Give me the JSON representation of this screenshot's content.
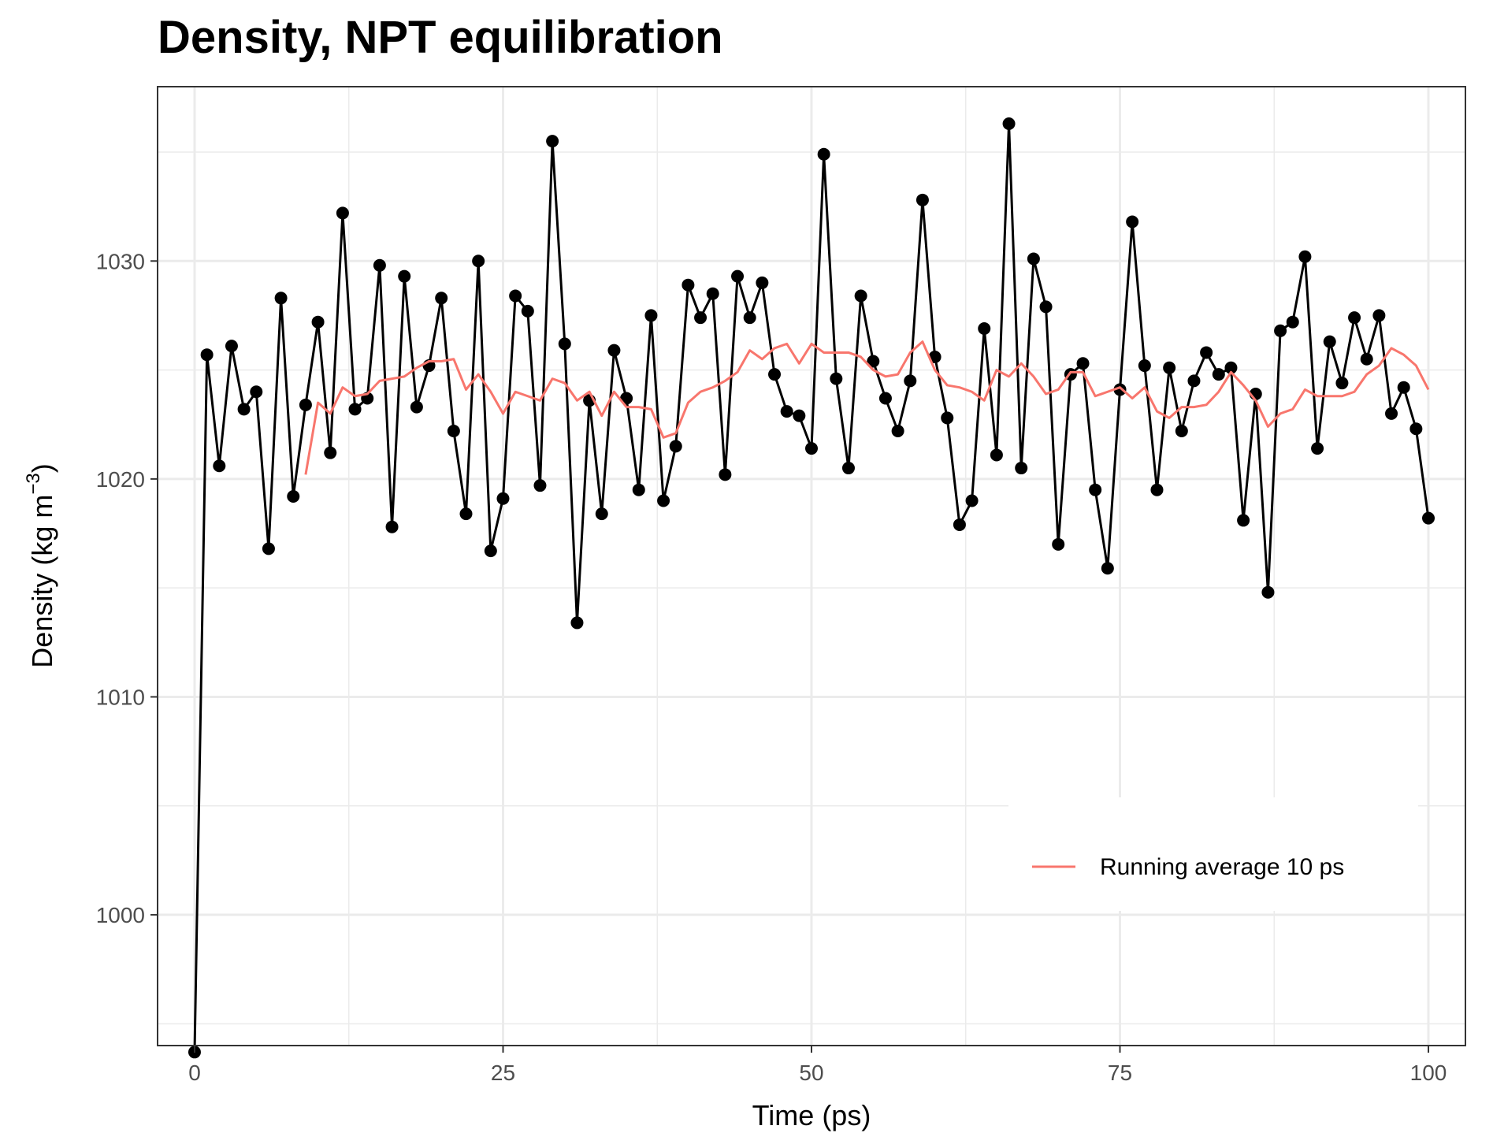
{
  "chart_data": {
    "type": "line",
    "title": "Density, NPT equilibration",
    "xlabel": "Time (ps)",
    "ylabel_main": "Density (kg  m",
    "ylabel_sup": "−3",
    "ylabel_close": ")",
    "xlim": [
      -3,
      103
    ],
    "ylim": [
      994,
      1038
    ],
    "xticks": [
      0,
      25,
      50,
      75,
      100
    ],
    "yticks": [
      1000,
      1010,
      1020,
      1030
    ],
    "xtick_labels": [
      "0",
      "25",
      "50",
      "75",
      "100"
    ],
    "ytick_labels": [
      "1000",
      "1010",
      "1020",
      "1030"
    ],
    "grid": true,
    "legend_position": "bottom-right",
    "series": [
      {
        "name": "",
        "style": "line+points",
        "color": "#000000",
        "x": [
          0,
          1,
          2,
          3,
          4,
          5,
          6,
          7,
          8,
          9,
          10,
          11,
          12,
          13,
          14,
          15,
          16,
          17,
          18,
          19,
          20,
          21,
          22,
          23,
          24,
          25,
          26,
          27,
          28,
          29,
          30,
          31,
          32,
          33,
          34,
          35,
          36,
          37,
          38,
          39,
          40,
          41,
          42,
          43,
          44,
          45,
          46,
          47,
          48,
          49,
          50,
          51,
          52,
          53,
          54,
          55,
          56,
          57,
          58,
          59,
          60,
          61,
          62,
          63,
          64,
          65,
          66,
          67,
          68,
          69,
          70,
          71,
          72,
          73,
          74,
          75,
          76,
          77,
          78,
          79,
          80,
          81,
          82,
          83,
          84,
          85,
          86,
          87,
          88,
          89,
          90,
          91,
          92,
          93,
          94,
          95,
          96,
          97,
          98,
          99,
          100
        ],
        "y": [
          993.7,
          1025.7,
          1020.6,
          1026.1,
          1023.2,
          1024.0,
          1016.8,
          1028.3,
          1019.2,
          1023.4,
          1027.2,
          1021.2,
          1032.2,
          1023.2,
          1023.7,
          1029.8,
          1017.8,
          1029.3,
          1023.3,
          1025.2,
          1028.3,
          1022.2,
          1018.4,
          1030.0,
          1016.7,
          1019.1,
          1028.4,
          1027.7,
          1019.7,
          1035.5,
          1026.2,
          1013.4,
          1023.6,
          1018.4,
          1025.9,
          1023.7,
          1019.5,
          1027.5,
          1019.0,
          1021.5,
          1028.9,
          1027.4,
          1028.5,
          1020.2,
          1029.3,
          1027.4,
          1029.0,
          1024.8,
          1023.1,
          1022.9,
          1021.4,
          1034.9,
          1024.6,
          1020.5,
          1028.4,
          1025.4,
          1023.7,
          1022.2,
          1024.5,
          1032.8,
          1025.6,
          1022.8,
          1017.9,
          1019.0,
          1026.9,
          1021.1,
          1036.3,
          1020.5,
          1030.1,
          1027.9,
          1017.0,
          1024.8,
          1025.3,
          1019.5,
          1015.9,
          1024.1,
          1031.8,
          1025.2,
          1019.5,
          1025.1,
          1022.2,
          1024.5,
          1025.8,
          1024.8,
          1025.1,
          1018.1,
          1023.9,
          1014.8,
          1026.8,
          1027.2,
          1030.2,
          1021.4,
          1026.3,
          1024.4,
          1027.4,
          1025.5,
          1027.5,
          1023.0,
          1024.2,
          1022.3,
          1018.2
        ]
      },
      {
        "name": "Running average 10 ps",
        "style": "line",
        "color": "#F8766D",
        "x": [
          9,
          10,
          11,
          12,
          13,
          14,
          15,
          16,
          17,
          18,
          19,
          20,
          21,
          22,
          23,
          24,
          25,
          26,
          27,
          28,
          29,
          30,
          31,
          32,
          33,
          34,
          35,
          36,
          37,
          38,
          39,
          40,
          41,
          42,
          43,
          44,
          45,
          46,
          47,
          48,
          49,
          50,
          51,
          52,
          53,
          54,
          55,
          56,
          57,
          58,
          59,
          60,
          61,
          62,
          63,
          64,
          65,
          66,
          67,
          68,
          69,
          70,
          71,
          72,
          73,
          74,
          75,
          76,
          77,
          78,
          79,
          80,
          81,
          82,
          83,
          84,
          85,
          86,
          87,
          88,
          89,
          90,
          91,
          92,
          93,
          94,
          95,
          96,
          97,
          98,
          99,
          100
        ],
        "y": [
          1020.2,
          1023.5,
          1023.0,
          1024.2,
          1023.8,
          1023.9,
          1024.5,
          1024.6,
          1024.7,
          1025.1,
          1025.4,
          1025.4,
          1025.5,
          1024.1,
          1024.8,
          1024.0,
          1023.0,
          1024.0,
          1023.8,
          1023.6,
          1024.6,
          1024.4,
          1023.6,
          1024.0,
          1022.9,
          1024.0,
          1023.3,
          1023.3,
          1023.2,
          1021.9,
          1022.1,
          1023.5,
          1024.0,
          1024.2,
          1024.5,
          1024.9,
          1025.9,
          1025.5,
          1026.0,
          1026.2,
          1025.3,
          1026.2,
          1025.8,
          1025.8,
          1025.8,
          1025.6,
          1025.0,
          1024.7,
          1024.8,
          1025.8,
          1026.3,
          1025.0,
          1024.3,
          1024.2,
          1024.0,
          1023.6,
          1025.0,
          1024.7,
          1025.3,
          1024.7,
          1023.9,
          1024.1,
          1024.9,
          1024.9,
          1023.8,
          1024.0,
          1024.2,
          1023.7,
          1024.2,
          1023.1,
          1022.8,
          1023.3,
          1023.3,
          1023.4,
          1024.0,
          1024.9,
          1024.3,
          1023.6,
          1022.4,
          1023.0,
          1023.2,
          1024.1,
          1023.8,
          1023.8,
          1023.8,
          1024.0,
          1024.8,
          1025.2,
          1026.0,
          1025.7,
          1025.2,
          1024.1
        ]
      }
    ]
  }
}
